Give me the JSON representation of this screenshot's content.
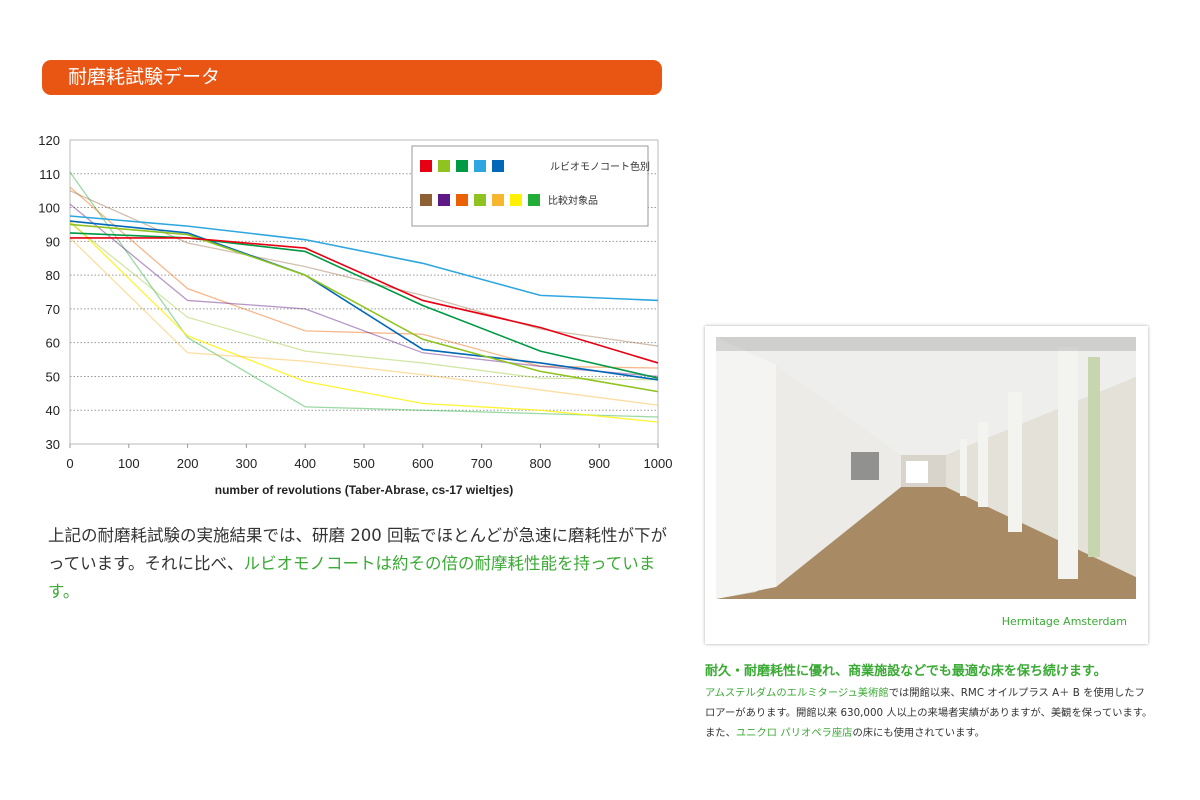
{
  "header": {
    "title": "耐磨耗試験データ"
  },
  "chart_data": {
    "type": "line",
    "title": "",
    "xlabel": "number of revolutions (Taber-Abrase, cs-17 wieltjes)",
    "ylabel": "",
    "xlim": [
      0,
      1000
    ],
    "ylim": [
      30,
      120
    ],
    "x_ticks": [
      0,
      100,
      200,
      300,
      400,
      500,
      600,
      700,
      800,
      900,
      1000
    ],
    "y_ticks": [
      30,
      40,
      50,
      60,
      70,
      80,
      90,
      100,
      110,
      120
    ],
    "grid": "horizontal dotted",
    "legend_position": "top-right",
    "legend": [
      {
        "label": "ルビオモノコート色別",
        "colors": [
          "#e60012",
          "#8fc31f",
          "#009944",
          "#2ea7e0",
          "#0068b7"
        ]
      },
      {
        "label": "比較対象品",
        "colors": [
          "#8f5f34",
          "#5f1985",
          "#eb6100",
          "#8fc31f",
          "#f8b62d",
          "#fff100",
          "#22ac38"
        ]
      }
    ],
    "x": [
      0,
      200,
      400,
      600,
      800,
      1000
    ],
    "series": [
      {
        "group": "ルビオモノコート色別",
        "color": "#e60012",
        "opacity": 1,
        "values": [
          91,
          91,
          88,
          72.5,
          64.5,
          54
        ]
      },
      {
        "group": "ルビオモノコート色別",
        "color": "#8fc31f",
        "opacity": 1,
        "values": [
          95,
          92,
          80,
          61,
          51.5,
          45.5
        ]
      },
      {
        "group": "ルビオモノコート色別",
        "color": "#009944",
        "opacity": 1,
        "values": [
          92.5,
          91,
          87,
          71,
          57.5,
          49.5
        ]
      },
      {
        "group": "ルビオモノコート色別",
        "color": "#2ea7e0",
        "opacity": 1,
        "values": [
          97.5,
          94.5,
          90.5,
          83.5,
          74,
          72.5
        ]
      },
      {
        "group": "ルビオモノコート色別",
        "color": "#0068b7",
        "opacity": 1,
        "values": [
          96,
          92.5,
          80,
          58,
          54,
          49
        ]
      },
      {
        "group": "比較対象品",
        "color": "#8f5f34",
        "opacity": 0.4,
        "values": [
          105,
          89.5,
          82.5,
          74,
          64,
          59
        ]
      },
      {
        "group": "比較対象品",
        "color": "#5f1985",
        "opacity": 0.45,
        "values": [
          101,
          72.5,
          70,
          57,
          53,
          50
        ]
      },
      {
        "group": "比較対象品",
        "color": "#eb6100",
        "opacity": 0.45,
        "values": [
          106,
          76,
          63.5,
          62.5,
          53,
          52.5
        ]
      },
      {
        "group": "比較対象品",
        "color": "#8fc31f",
        "opacity": 0.4,
        "values": [
          95.5,
          67.5,
          57.5,
          54,
          49.5,
          49
        ]
      },
      {
        "group": "比較対象品",
        "color": "#f8b62d",
        "opacity": 0.45,
        "values": [
          91,
          57,
          54.5,
          50.5,
          46,
          41.5
        ]
      },
      {
        "group": "比較対象品",
        "color": "#fff100",
        "opacity": 0.8,
        "values": [
          96,
          62,
          48.5,
          42,
          40,
          36.5
        ]
      },
      {
        "group": "比較対象品",
        "color": "#22ac38",
        "opacity": 0.45,
        "values": [
          110.5,
          61.5,
          41,
          40,
          39,
          38
        ]
      }
    ]
  },
  "paragraph": {
    "plain": "上記の耐磨耗試験の実施結果では、研磨 200 回転でほとんどが急速に磨耗性が下がっています。それに比べ、",
    "highlight": "ルビオモノコートは約その倍の耐摩耗性能を持っています。"
  },
  "photo": {
    "caption": "Hermitage  Amsterdam"
  },
  "feature": {
    "title": "耐久・耐磨耗性に優れ、商業施設などでも最適な床を保ち続けます。",
    "link1": "アムステルダムのエルミタージュ美術館",
    "text1": "では開館以来、RMC オイルプラス A＋ B を使用したフロアーがあります。開館以来 630,000 人以上の来場者実績がありますが、美観を保っています。また、",
    "link2": "ユニクロ パリオペラ座店",
    "text2": "の床にも使用されています。"
  },
  "colors": {
    "accent": "#e95513",
    "green": "#3aaa35"
  }
}
